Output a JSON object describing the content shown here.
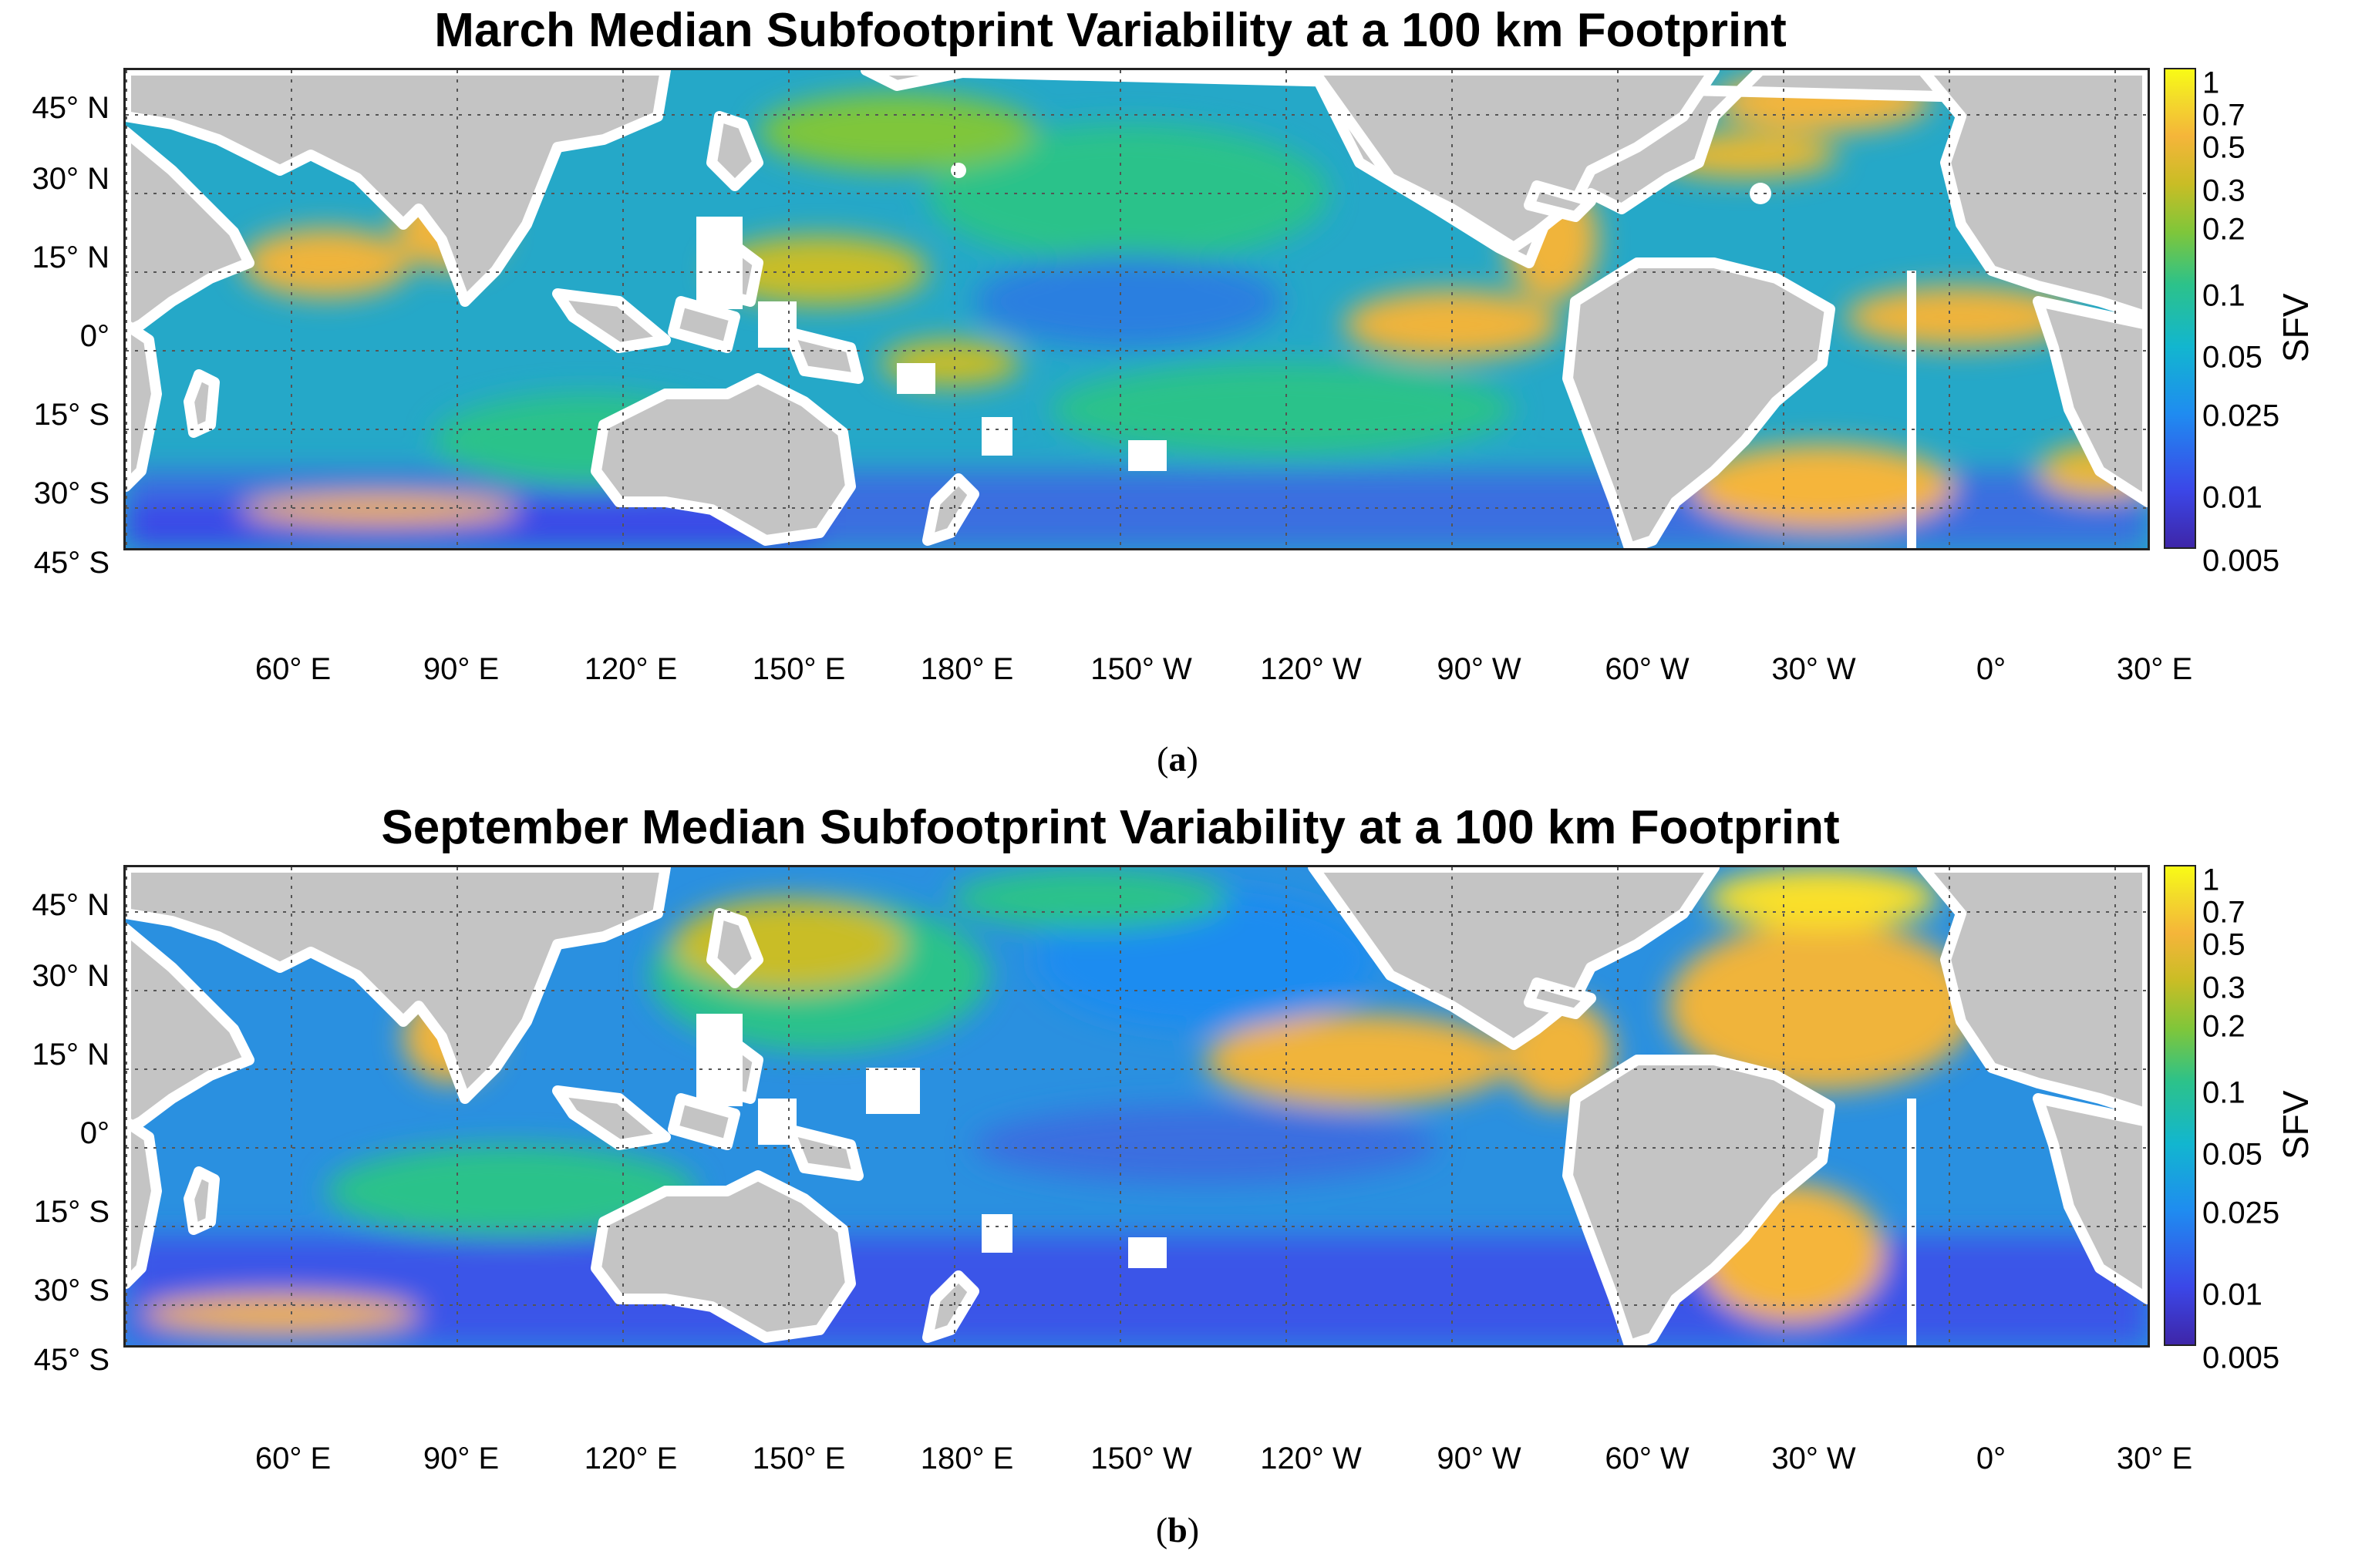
{
  "figure": {
    "panels": [
      {
        "id": "a",
        "title": "March Median Subfootprint Variability at a 100 km Footprint",
        "caption_letter": "a",
        "colorbar_label": "SFV"
      },
      {
        "id": "b",
        "title": "September Median Subfootprint Variability at a 100 km Footprint",
        "caption_letter": "b",
        "colorbar_label": "SFV"
      }
    ],
    "lat_ticks": [
      "45° N",
      "30° N",
      "15° N",
      "0°",
      "15° S",
      "30° S",
      "45° S"
    ],
    "lon_ticks": [
      "60° E",
      "90° E",
      "120° E",
      "150° E",
      "180° E",
      "150° W",
      "120° W",
      "90° W",
      "60° W",
      "30° W",
      "0°",
      "30° E"
    ],
    "colorbar_ticks": [
      "1",
      "0.7",
      "0.5",
      "0.3",
      "0.2",
      "0.1",
      "0.05",
      "0.025",
      "0.01",
      "0.005"
    ],
    "colorbar_scale": "log",
    "colors": {
      "land": "#c4c4c4",
      "ocean_low": "#3b47e8",
      "ocean_mid": "#2a9fd8",
      "ocean_green": "#2cc28a",
      "ocean_high": "#f5b53a",
      "ocean_max": "#f9fb15"
    }
  }
}
